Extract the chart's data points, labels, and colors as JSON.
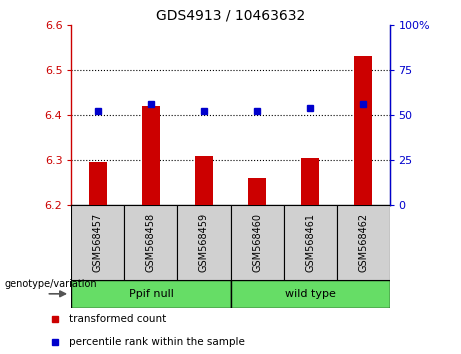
{
  "title": "GDS4913 / 10463632",
  "categories": [
    "GSM568457",
    "GSM568458",
    "GSM568459",
    "GSM568460",
    "GSM568461",
    "GSM568462"
  ],
  "red_values": [
    6.295,
    6.42,
    6.31,
    6.26,
    6.305,
    6.53
  ],
  "blue_values": [
    6.41,
    6.425,
    6.41,
    6.41,
    6.415,
    6.425
  ],
  "ylim_left": [
    6.2,
    6.6
  ],
  "ylim_right": [
    0,
    100
  ],
  "yticks_left": [
    6.2,
    6.3,
    6.4,
    6.5,
    6.6
  ],
  "yticks_right": [
    0,
    25,
    50,
    75,
    100
  ],
  "ytick_labels_right": [
    "0",
    "25",
    "50",
    "75",
    "100%"
  ],
  "red_color": "#cc0000",
  "blue_color": "#0000cc",
  "bar_width": 0.35,
  "group1_label": "Ppif null",
  "group2_label": "wild type",
  "group_color": "#66dd66",
  "genotype_label": "genotype/variation",
  "legend_red": "transformed count",
  "legend_blue": "percentile rank within the sample",
  "tick_color_left": "#cc0000",
  "tick_color_right": "#0000cc",
  "dotted_lines_at": [
    6.3,
    6.4,
    6.5
  ],
  "baseline": 6.2,
  "gray_cell_color": "#d0d0d0",
  "cell_border_color": "#000000"
}
